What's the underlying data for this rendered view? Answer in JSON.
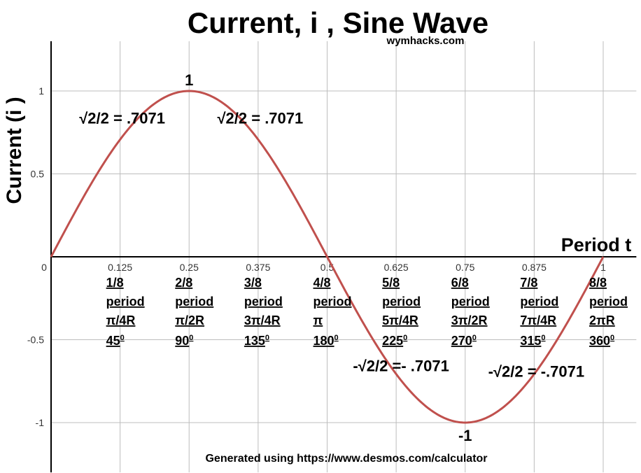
{
  "chart_data": {
    "type": "line",
    "title": "Current, i , Sine Wave",
    "watermark": "wymhacks.com",
    "footer": "Generated using https://www.desmos.com/calculator",
    "ylabel": "Current (i )",
    "xlabel": "Period t",
    "xlim": [
      0,
      1.06
    ],
    "ylim": [
      -1.3,
      1.3
    ],
    "grid": true,
    "curve_color": "#c0504d",
    "x_ticks": [
      {
        "value": 0,
        "label": "0"
      },
      {
        "value": 0.125,
        "label": "0.125"
      },
      {
        "value": 0.25,
        "label": "0.25"
      },
      {
        "value": 0.375,
        "label": "0.375"
      },
      {
        "value": 0.5,
        "label": "0.5"
      },
      {
        "value": 0.625,
        "label": "0.625"
      },
      {
        "value": 0.75,
        "label": "0.75"
      },
      {
        "value": 0.875,
        "label": "0.875"
      },
      {
        "value": 1,
        "label": "1"
      }
    ],
    "y_ticks": [
      {
        "value": 1,
        "label": "1"
      },
      {
        "value": 0.5,
        "label": "0.5"
      },
      {
        "value": -0.5,
        "label": "-0.5"
      },
      {
        "value": -1,
        "label": "-1"
      }
    ],
    "series": [
      {
        "function": "sin(2πt)",
        "x": [
          0,
          0.125,
          0.25,
          0.375,
          0.5,
          0.625,
          0.75,
          0.875,
          1
        ],
        "y": [
          0,
          0.7071,
          1,
          0.7071,
          0,
          -0.7071,
          -1,
          -0.7071,
          0
        ]
      }
    ],
    "period_labels": [
      {
        "x": 0.125,
        "lines": [
          "1/8",
          "period",
          "π/4R",
          "45",
          "0"
        ]
      },
      {
        "x": 0.25,
        "lines": [
          "2/8",
          "period",
          "π/2R",
          "90",
          "0"
        ]
      },
      {
        "x": 0.375,
        "lines": [
          "3/8",
          "period",
          "3π/4R",
          "135",
          "0"
        ]
      },
      {
        "x": 0.5,
        "lines": [
          "4/8",
          "period",
          "π",
          "180",
          "0"
        ]
      },
      {
        "x": 0.625,
        "lines": [
          "5/8",
          "period",
          "5π/4R",
          "225",
          "0"
        ]
      },
      {
        "x": 0.75,
        "lines": [
          "6/8",
          "period",
          "3π/2R",
          "270",
          "0"
        ]
      },
      {
        "x": 0.875,
        "lines": [
          "7/8",
          "period",
          "7π/4R",
          "315",
          "0"
        ]
      },
      {
        "x": 1,
        "lines": [
          "8/8",
          "period",
          "2πR",
          "360",
          "0"
        ]
      }
    ],
    "annotations": [
      {
        "text": "1",
        "x": 0.25,
        "y": 1
      },
      {
        "text": "√2/2 = .7071",
        "x": 0.125,
        "y": 0.7071
      },
      {
        "text": "√2/2 = .7071",
        "x": 0.375,
        "y": 0.7071
      },
      {
        "text": "-√2/2 =- .7071",
        "x": 0.625,
        "y": -0.7071
      },
      {
        "text": "-√2/2 = -.7071",
        "x": 0.875,
        "y": -0.7071
      },
      {
        "text": "-1",
        "x": 0.75,
        "y": -1
      }
    ]
  }
}
